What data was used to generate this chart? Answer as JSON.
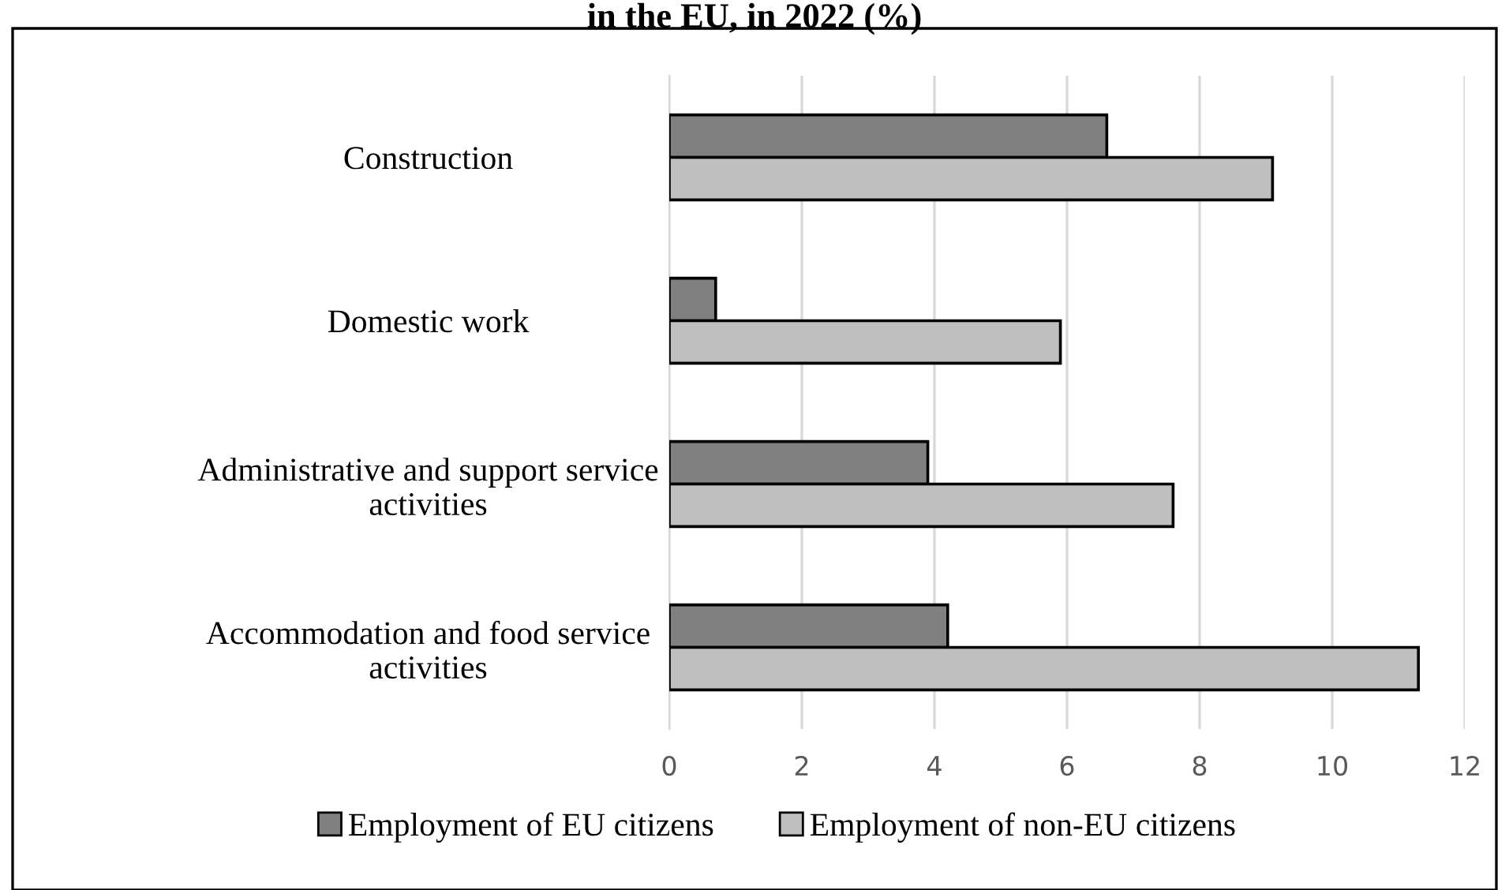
{
  "chart_data": {
    "type": "bar",
    "orientation": "horizontal",
    "title": "in the EU, in 2022 (%)",
    "categories": [
      "Construction",
      "Domestic work",
      "Administrative and support service\nactivities",
      "Accommodation and food service\nactivities"
    ],
    "series": [
      {
        "name": "Employment of EU citizens",
        "color": "#808080",
        "values": [
          6.6,
          0.7,
          3.9,
          4.2
        ]
      },
      {
        "name": "Employment of non-EU citizens",
        "color": "#bfbfbf",
        "values": [
          9.1,
          5.9,
          7.6,
          11.3
        ]
      }
    ],
    "xlim": [
      0,
      12
    ],
    "xticks": [
      0,
      2,
      4,
      6,
      8,
      10,
      12
    ],
    "grid": "x",
    "legend": "bottom"
  }
}
